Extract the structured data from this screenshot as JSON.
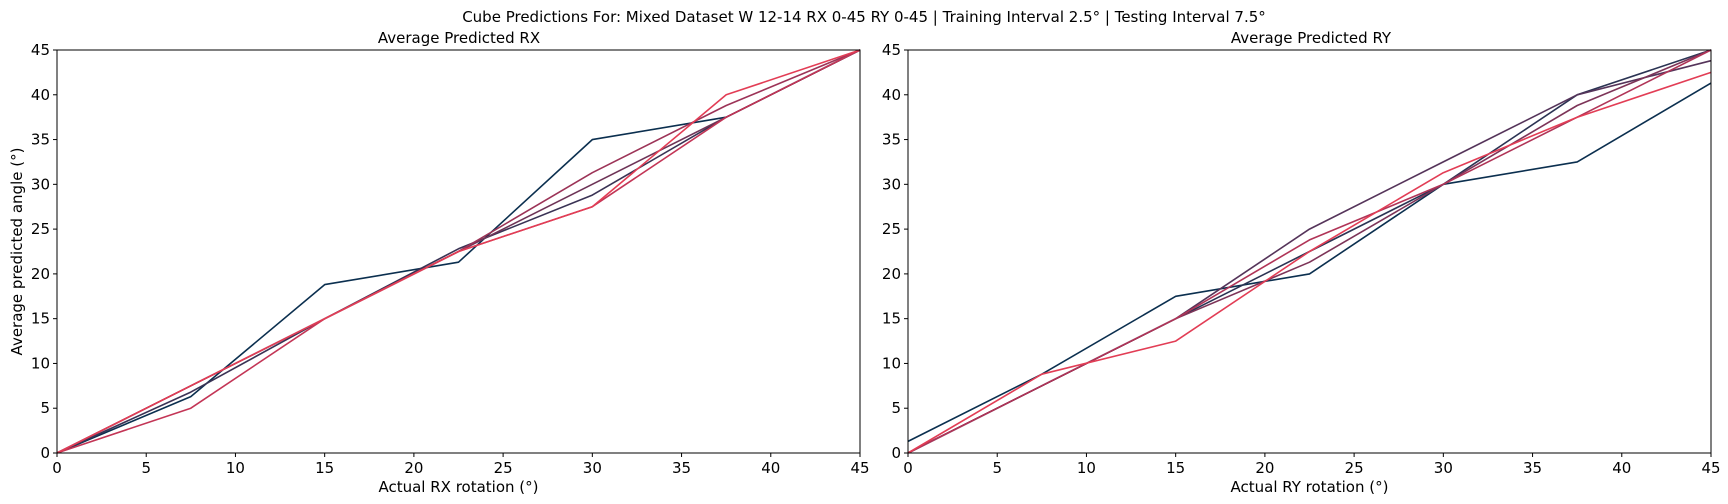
{
  "suptitle": "Cube Predictions For: Mixed Dataset W 12-14 RX 0-45 RY 0-45 | Training Interval 2.5° | Testing Interval 7.5°",
  "chart_data": [
    {
      "type": "line",
      "title": "Average Predicted RX",
      "xlabel": "Actual RX rotation (°)",
      "ylabel": "Average predicted angle (°)",
      "xlim": [
        0,
        45
      ],
      "ylim": [
        0,
        45
      ],
      "xticks": [
        0,
        5,
        10,
        15,
        20,
        25,
        30,
        35,
        40,
        45
      ],
      "yticks": [
        0,
        5,
        10,
        15,
        20,
        25,
        30,
        35,
        40,
        45
      ],
      "grid": false,
      "x": [
        0,
        7.5,
        15,
        22.5,
        30,
        37.5,
        45
      ],
      "series": [
        {
          "color": "#0b2f4f",
          "values": [
            0,
            6.3,
            18.8,
            21.3,
            35.0,
            37.5,
            45
          ]
        },
        {
          "color": "#3a3355",
          "values": [
            0,
            6.8,
            15.0,
            22.8,
            28.8,
            37.5,
            45
          ]
        },
        {
          "color": "#6e3457",
          "values": [
            0,
            7.5,
            15.0,
            22.5,
            30.0,
            37.5,
            45
          ]
        },
        {
          "color": "#9c3357",
          "values": [
            0,
            7.5,
            15.0,
            22.5,
            31.3,
            38.8,
            45
          ]
        },
        {
          "color": "#c33556",
          "values": [
            0,
            5.0,
            15.0,
            22.5,
            27.5,
            37.5,
            45
          ]
        },
        {
          "color": "#e23d55",
          "values": [
            0,
            7.5,
            15.0,
            22.5,
            27.5,
            40.0,
            45
          ]
        }
      ]
    },
    {
      "type": "line",
      "title": "Average Predicted RY",
      "xlabel": "Actual RY rotation (°)",
      "ylabel": "",
      "xlim": [
        0,
        45
      ],
      "ylim": [
        0,
        45
      ],
      "xticks": [
        0,
        5,
        10,
        15,
        20,
        25,
        30,
        35,
        40,
        45
      ],
      "yticks": [
        0,
        5,
        10,
        15,
        20,
        25,
        30,
        35,
        40,
        45
      ],
      "grid": false,
      "x": [
        0,
        7.5,
        15,
        22.5,
        30,
        37.5,
        45
      ],
      "series": [
        {
          "color": "#0b2f4f",
          "values": [
            1.3,
            8.8,
            17.5,
            20.0,
            30.0,
            32.5,
            41.3
          ]
        },
        {
          "color": "#2b3353",
          "values": [
            0,
            7.5,
            15.0,
            22.5,
            30.0,
            40.0,
            45
          ]
        },
        {
          "color": "#55345a",
          "values": [
            0,
            7.5,
            15.0,
            25.0,
            32.5,
            40.0,
            43.8
          ]
        },
        {
          "color": "#7d3458",
          "values": [
            0,
            7.5,
            15.0,
            21.3,
            30.0,
            38.8,
            45
          ]
        },
        {
          "color": "#b03457",
          "values": [
            0,
            7.5,
            15.0,
            23.8,
            30.0,
            37.5,
            45
          ]
        },
        {
          "color": "#e23d55",
          "values": [
            0,
            8.8,
            12.5,
            22.5,
            31.3,
            37.5,
            42.5
          ]
        }
      ]
    }
  ]
}
